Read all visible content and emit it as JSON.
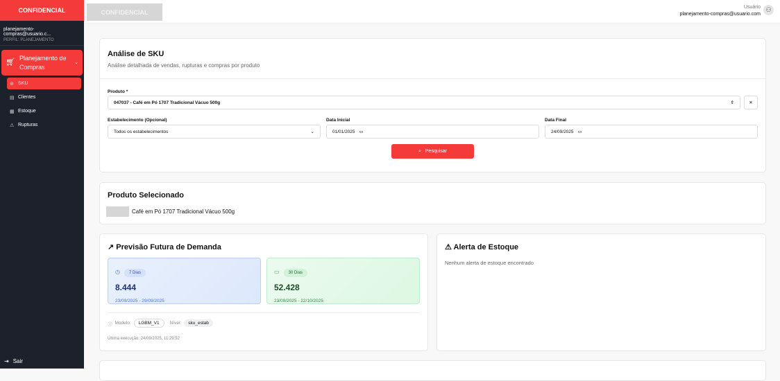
{
  "sidebar": {
    "confidential": "CONFIDENCIAL",
    "email": "planejamento-compras@usuario.c...",
    "profile": "PERFIL: PLANEJAMENTO",
    "menu": "Planejamento de Compras",
    "items": [
      {
        "label": "SKU",
        "icon": "box-icon"
      },
      {
        "label": "Clientes",
        "icon": "building-icon"
      },
      {
        "label": "Estoque",
        "icon": "warehouse-icon"
      },
      {
        "label": "Rupturas",
        "icon": "warning-icon"
      }
    ],
    "logout": "Sair"
  },
  "topbar": {
    "confidential": "CONFIDENCIAL",
    "user_label": "Usuário",
    "user_email": "planejamento-compras@usuario.com"
  },
  "analysis": {
    "title": "Análise de SKU",
    "subtitle": "Análise detalhada de vendas, rupturas e compras por produto",
    "product_label": "Produto *",
    "product_value": "047037 - Café em Pó 1707 Tradicional Vácuo 500g",
    "estab_label": "Estabelecimento (Opcional)",
    "estab_value": "Todos os estabelecimentos",
    "start_label": "Data Inicial",
    "start_value": "01/01/2025",
    "end_label": "Data Final",
    "end_value": "24/09/2025",
    "search": "Pesquisar"
  },
  "selected": {
    "title": "Produto Selecionado",
    "name": "Café em Pó 1707 Tradicional Vácuo 500g"
  },
  "forecast": {
    "title": "Previsão Futura de Demanda",
    "cards": [
      {
        "badge": "7 Dias",
        "value": "8.444",
        "range": "23/09/2025 - 29/09/2025"
      },
      {
        "badge": "30 Dias",
        "value": "52.428",
        "range": "23/09/2025 - 22/10/2025"
      }
    ],
    "model_label": "Modelo:",
    "model": "LGBM_V1",
    "level_label": "Nível:",
    "level": "sku_estab",
    "last_run": "Última execução: 24/09/2025, 11:29:52"
  },
  "alert": {
    "title": "Alerta de Estoque",
    "message": "Nenhum alerta de estoque encontrado"
  },
  "colors": {
    "accent": "#f53a3a",
    "sidebar": "#1c212b"
  }
}
